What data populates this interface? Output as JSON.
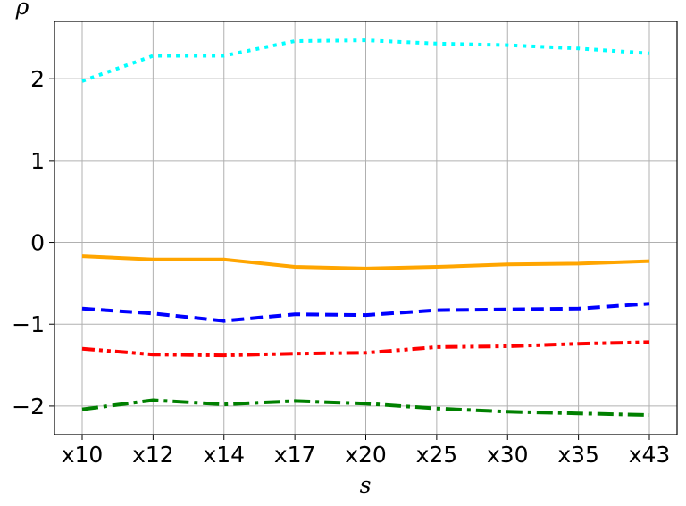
{
  "chart_data": {
    "type": "line",
    "xlabel": "s",
    "ylabel": "ρ",
    "categories": [
      "x10",
      "x12",
      "x14",
      "x17",
      "x20",
      "x25",
      "x30",
      "x35",
      "x43"
    ],
    "y_ticks": [
      -2,
      -1,
      0,
      1,
      2
    ],
    "y_tick_labels": [
      "−2",
      "−1",
      "0",
      "1",
      "2"
    ],
    "ylim": [
      -2.35,
      2.7
    ],
    "grid": true,
    "legend": "none",
    "series": [
      {
        "color": "#00ffff",
        "linestyle": "dotted",
        "values": [
          1.97,
          2.28,
          2.28,
          2.46,
          2.47,
          2.43,
          2.41,
          2.37,
          2.31
        ]
      },
      {
        "color": "#ffa500",
        "linestyle": "solid",
        "values": [
          -0.17,
          -0.21,
          -0.21,
          -0.3,
          -0.32,
          -0.3,
          -0.27,
          -0.26,
          -0.23
        ]
      },
      {
        "color": "#0000ff",
        "linestyle": "dashed",
        "values": [
          -0.81,
          -0.87,
          -0.96,
          -0.88,
          -0.89,
          -0.83,
          -0.82,
          -0.81,
          -0.75
        ]
      },
      {
        "color": "#ff0000",
        "linestyle": "dashdotdot",
        "values": [
          -1.3,
          -1.37,
          -1.38,
          -1.36,
          -1.35,
          -1.28,
          -1.27,
          -1.24,
          -1.22
        ]
      },
      {
        "color": "#008000",
        "linestyle": "dashdot",
        "values": [
          -2.04,
          -1.93,
          -1.98,
          -1.94,
          -1.97,
          -2.03,
          -2.07,
          -2.09,
          -2.11
        ]
      }
    ]
  }
}
